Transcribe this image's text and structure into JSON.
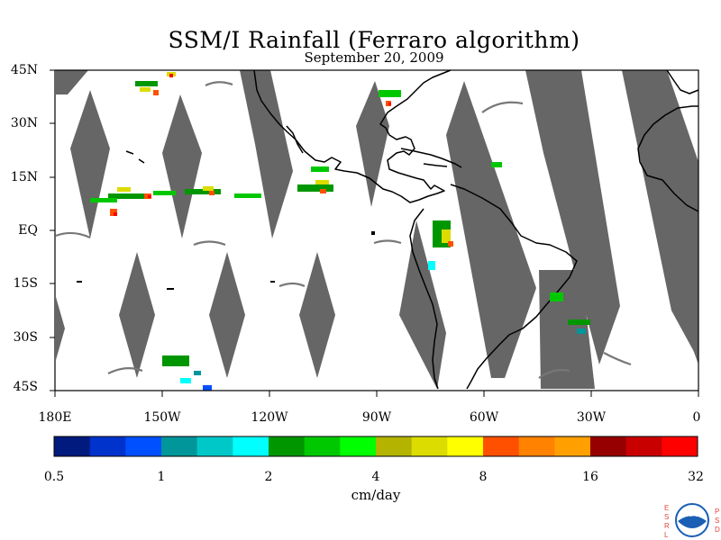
{
  "title": "SSM/I Rainfall (Ferraro algorithm)",
  "date": "September 20, 2009",
  "lat_labels": [
    "45N",
    "30N",
    "15N",
    "EQ",
    "15S",
    "30S",
    "45S"
  ],
  "lon_labels": [
    "180E",
    "150W",
    "120W",
    "90W",
    "60W",
    "30W",
    "0"
  ],
  "colorbar": {
    "unit": "cm/day",
    "tick_labels": [
      "0.5",
      "1",
      "2",
      "4",
      "8",
      "16",
      "32"
    ],
    "colors": [
      "#001a7e",
      "#0033cc",
      "#0050ff",
      "#00969a",
      "#00c8c8",
      "#00ffff",
      "#009600",
      "#00c800",
      "#00ff00",
      "#b4b400",
      "#dcdc00",
      "#ffff00",
      "#ff5000",
      "#ff8200",
      "#ffa000",
      "#960000",
      "#c80000",
      "#ff0000"
    ]
  },
  "colors": {
    "swath_gap": "#666666",
    "coastline": "#000000",
    "ocean": "#ffffff"
  },
  "logo": {
    "name": "noaa-logo",
    "left_letters": [
      "E",
      "S",
      "R",
      "L"
    ],
    "right_letters": [
      "P",
      "S",
      "D"
    ],
    "badge_text": "NOAA"
  }
}
